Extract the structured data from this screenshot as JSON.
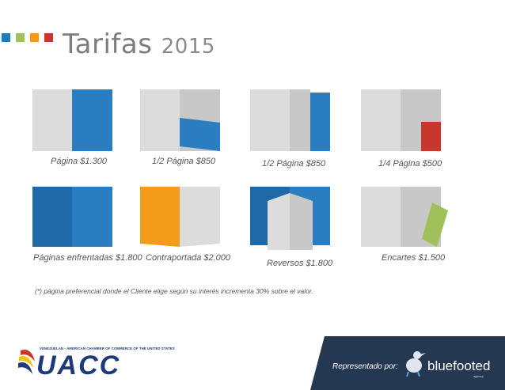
{
  "header": {
    "title": "Tarifas",
    "year": "2015",
    "squares": [
      "#1f7bbf",
      "#9fc05a",
      "#f29a1b",
      "#c8372d"
    ]
  },
  "colors": {
    "blue": "#2a7dc0",
    "dark_blue": "#1f69a8",
    "gray": "#dcdcdc",
    "gray_dark": "#c8c8c8",
    "red": "#c8372d",
    "orange": "#f39c19",
    "green": "#9fc05a",
    "navy": "#243852"
  },
  "rates": [
    {
      "label": "Página $1.300"
    },
    {
      "label": "1/2 Página $850"
    },
    {
      "label": "1/2 Página $850"
    },
    {
      "label": "1/4 Página $500"
    },
    {
      "label": "Páginas enfrentadas $1.800"
    },
    {
      "label": "Contraportada $2.000"
    },
    {
      "label": "Reversos $1.800"
    },
    {
      "label": "Encartes $1.500"
    }
  ],
  "note": "(*) página preferencial donde el Cliente elige según su interés incrementa 30% sobre el valor.",
  "footer": {
    "chamber_caption": "VENEZUELAN - AMERICAN CHAMBER OF COMMERCE OF THE UNITED STATES",
    "chamber_name": "UACC",
    "represented_by": "Representado por:",
    "agency_name": "bluefooted",
    "agency_sub": "agency"
  }
}
